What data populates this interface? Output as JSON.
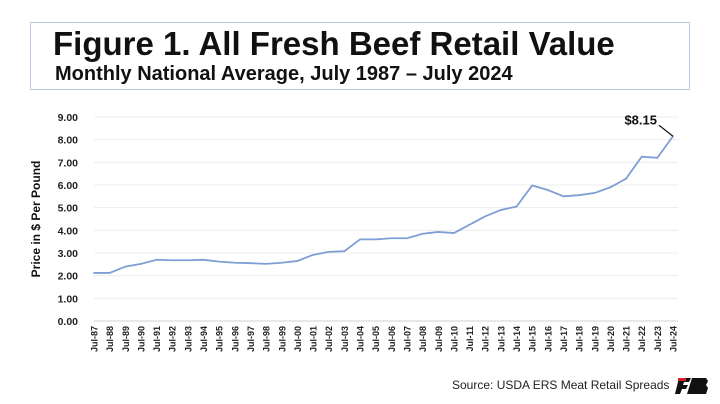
{
  "header": {
    "title": "Figure 1. All Fresh Beef Retail Value",
    "subtitle": "Monthly National Average, July 1987 – July 2024"
  },
  "source": "Source: USDA ERS Meat Retail Spreads",
  "logo_text": "FB",
  "chart_data": {
    "type": "line",
    "title": "Figure 1. All Fresh Beef Retail Value",
    "subtitle": "Monthly National Average, July 1987 – July 2024",
    "xlabel": "",
    "ylabel": "Price in $ Per Pound",
    "ylim": [
      0,
      9
    ],
    "yticks": [
      "0.00",
      "1.00",
      "2.00",
      "3.00",
      "4.00",
      "5.00",
      "6.00",
      "7.00",
      "8.00",
      "9.00"
    ],
    "grid": true,
    "line_color": "#7f9fd4",
    "categories": [
      "Jul-87",
      "Jul-88",
      "Jul-89",
      "Jul-90",
      "Jul-91",
      "Jul-92",
      "Jul-93",
      "Jul-94",
      "Jul-95",
      "Jul-96",
      "Jul-97",
      "Jul-98",
      "Jul-99",
      "Jul-00",
      "Jul-01",
      "Jul-02",
      "Jul-03",
      "Jul-04",
      "Jul-05",
      "Jul-06",
      "Jul-07",
      "Jul-08",
      "Jul-09",
      "Jul-10",
      "Jul-11",
      "Jul-12",
      "Jul-13",
      "Jul-14",
      "Jul-15",
      "Jul-16",
      "Jul-17",
      "Jul-18",
      "Jul-19",
      "Jul-20",
      "Jul-21",
      "Jul-22",
      "Jul-23",
      "Jul-24"
    ],
    "values": [
      2.12,
      2.12,
      2.4,
      2.52,
      2.7,
      2.68,
      2.68,
      2.7,
      2.62,
      2.57,
      2.55,
      2.52,
      2.57,
      2.65,
      2.92,
      3.05,
      3.08,
      3.6,
      3.6,
      3.65,
      3.65,
      3.85,
      3.93,
      3.88,
      4.25,
      4.62,
      4.9,
      5.05,
      5.98,
      5.78,
      5.5,
      5.55,
      5.65,
      5.9,
      6.28,
      7.25,
      7.2,
      8.15
    ],
    "annotation": "$8.15"
  }
}
